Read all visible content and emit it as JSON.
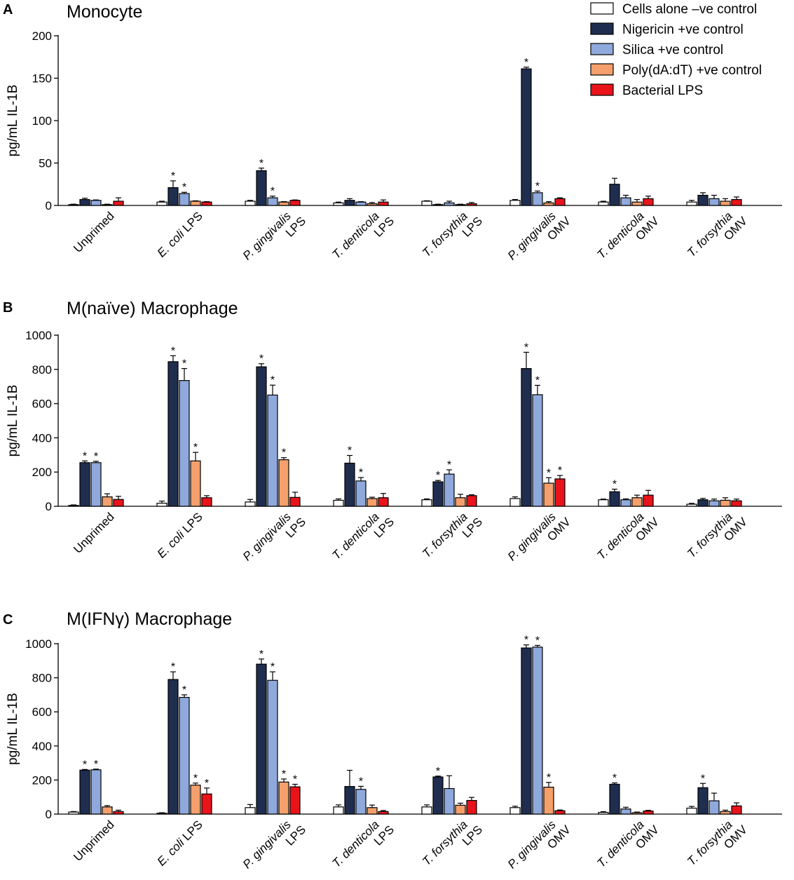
{
  "legend": [
    {
      "label": "Cells alone –ve control",
      "color": "#ffffff"
    },
    {
      "label": "Nigericin +ve control",
      "color": "#1f2d4f"
    },
    {
      "label": "Silica +ve control",
      "color": "#8fa9dc"
    },
    {
      "label": "Poly(dA:dT) +ve control",
      "color": "#f5a06c"
    },
    {
      "label": "Bacterial LPS",
      "color": "#e8141a"
    }
  ],
  "categories": [
    {
      "l1": "Unprimed",
      "l2": "",
      "italic": ""
    },
    {
      "l1": "E. coli LPS",
      "l2": "",
      "italic": "E. coli"
    },
    {
      "l1": "P. gingivalis",
      "l2": "LPS",
      "italic": "P. gingivalis"
    },
    {
      "l1": "T. denticola",
      "l2": "LPS",
      "italic": "T. denticola"
    },
    {
      "l1": "T. forsythia",
      "l2": "LPS",
      "italic": "T. forsythia"
    },
    {
      "l1": "P. gingivalis",
      "l2": "OMV",
      "italic": "P. gingivalis"
    },
    {
      "l1": "T. denticola",
      "l2": "OMV",
      "italic": "T. denticola"
    },
    {
      "l1": "T. forsythia",
      "l2": "OMV",
      "italic": "T. forsythia"
    }
  ],
  "chart_data": [
    {
      "type": "bar",
      "panel": "A",
      "title": "Monocyte",
      "ylabel": "pg/mL IL-1B",
      "ylim": [
        0,
        200
      ],
      "yticks": [
        0,
        50,
        100,
        150,
        200
      ],
      "values": [
        [
          1,
          7,
          6,
          1,
          5
        ],
        [
          4,
          21,
          14,
          5,
          4
        ],
        [
          5,
          41,
          9,
          4,
          6
        ],
        [
          3,
          6,
          4,
          2,
          4
        ],
        [
          5,
          1,
          3,
          1,
          2
        ],
        [
          6,
          161,
          15,
          3,
          8
        ],
        [
          4,
          25,
          9,
          4,
          8
        ],
        [
          4,
          12,
          8,
          5,
          7
        ]
      ],
      "errors": [
        [
          0.5,
          1.5,
          0.5,
          0.5,
          4
        ],
        [
          1,
          8,
          1.5,
          0.5,
          0.5
        ],
        [
          1,
          3,
          2,
          0.5,
          0.5
        ],
        [
          1,
          2,
          0.5,
          1.5,
          2.5
        ],
        [
          0.5,
          0.5,
          2,
          0.5,
          1.5
        ],
        [
          1,
          2,
          2,
          1.5,
          1
        ],
        [
          1,
          7,
          3,
          3,
          3
        ],
        [
          2,
          3,
          4,
          3,
          3
        ]
      ],
      "stars": [
        [
          0,
          0,
          0,
          0,
          0
        ],
        [
          0,
          1,
          1,
          0,
          0
        ],
        [
          0,
          1,
          1,
          0,
          0
        ],
        [
          0,
          0,
          0,
          0,
          0
        ],
        [
          0,
          0,
          0,
          0,
          0
        ],
        [
          0,
          1,
          1,
          0,
          0
        ],
        [
          0,
          0,
          0,
          0,
          0
        ],
        [
          0,
          0,
          0,
          0,
          0
        ]
      ]
    },
    {
      "type": "bar",
      "panel": "B",
      "title": "M(naïve) Macrophage",
      "ylabel": "pg/mL IL-1B",
      "ylim": [
        0,
        1000
      ],
      "yticks": [
        0,
        200,
        400,
        600,
        800,
        1000
      ],
      "values": [
        [
          5,
          255,
          255,
          55,
          40
        ],
        [
          18,
          845,
          735,
          265,
          50
        ],
        [
          25,
          815,
          650,
          272,
          52
        ],
        [
          35,
          252,
          148,
          45,
          50
        ],
        [
          38,
          143,
          188,
          50,
          62
        ],
        [
          45,
          805,
          652,
          135,
          160
        ],
        [
          38,
          85,
          38,
          50,
          65
        ],
        [
          12,
          38,
          32,
          35,
          32
        ]
      ],
      "errors": [
        [
          3,
          10,
          8,
          18,
          18
        ],
        [
          12,
          35,
          70,
          50,
          12
        ],
        [
          15,
          18,
          58,
          12,
          30
        ],
        [
          8,
          45,
          20,
          8,
          25
        ],
        [
          5,
          8,
          25,
          20,
          5
        ],
        [
          10,
          95,
          55,
          32,
          20
        ],
        [
          4,
          15,
          5,
          15,
          28
        ],
        [
          5,
          8,
          10,
          15,
          10
        ]
      ],
      "stars": [
        [
          0,
          1,
          1,
          0,
          0
        ],
        [
          0,
          1,
          1,
          1,
          0
        ],
        [
          0,
          1,
          1,
          1,
          0
        ],
        [
          0,
          1,
          1,
          0,
          0
        ],
        [
          0,
          1,
          1,
          0,
          0
        ],
        [
          0,
          1,
          1,
          1,
          1
        ],
        [
          0,
          1,
          0,
          0,
          0
        ],
        [
          0,
          0,
          0,
          0,
          0
        ]
      ]
    },
    {
      "type": "bar",
      "panel": "C",
      "title": "M(IFNγ) Macrophage",
      "ylabel": "pg/mL IL-1B",
      "ylim": [
        0,
        1000
      ],
      "yticks": [
        0,
        200,
        400,
        600,
        800,
        1000
      ],
      "values": [
        [
          12,
          258,
          260,
          42,
          15
        ],
        [
          5,
          790,
          685,
          170,
          118
        ],
        [
          38,
          880,
          785,
          188,
          160
        ],
        [
          42,
          162,
          145,
          38,
          15
        ],
        [
          42,
          218,
          150,
          52,
          80
        ],
        [
          38,
          975,
          980,
          158,
          20
        ],
        [
          10,
          175,
          30,
          8,
          18
        ],
        [
          35,
          155,
          78,
          15,
          48
        ]
      ],
      "errors": [
        [
          3,
          4,
          4,
          8,
          8
        ],
        [
          3,
          45,
          15,
          12,
          35
        ],
        [
          18,
          30,
          50,
          18,
          15
        ],
        [
          12,
          95,
          18,
          15,
          6
        ],
        [
          12,
          5,
          75,
          12,
          18
        ],
        [
          8,
          18,
          10,
          28,
          4
        ],
        [
          4,
          8,
          10,
          4,
          4
        ],
        [
          10,
          25,
          45,
          8,
          18
        ]
      ],
      "stars": [
        [
          0,
          1,
          1,
          0,
          0
        ],
        [
          0,
          1,
          1,
          1,
          1
        ],
        [
          0,
          1,
          1,
          1,
          1
        ],
        [
          0,
          0,
          1,
          0,
          0
        ],
        [
          0,
          1,
          0,
          0,
          0
        ],
        [
          0,
          1,
          1,
          1,
          0
        ],
        [
          0,
          1,
          0,
          0,
          0
        ],
        [
          0,
          1,
          0,
          0,
          0
        ]
      ]
    }
  ]
}
